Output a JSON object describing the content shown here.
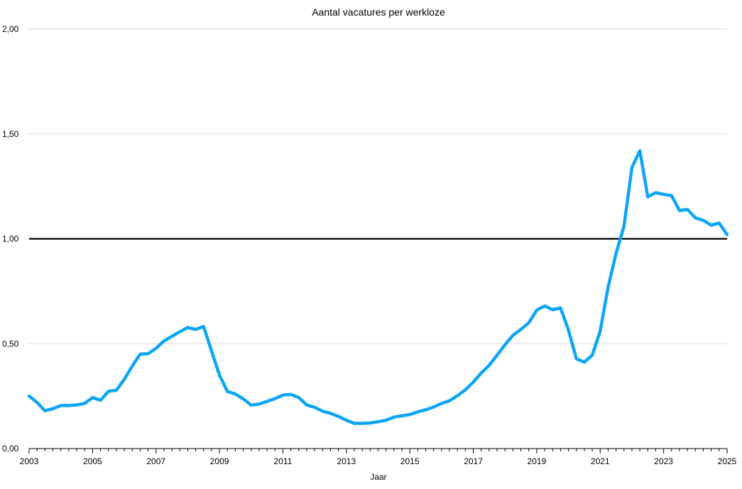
{
  "chart_data": {
    "type": "line",
    "title": "Aantal vacatures per werkloze",
    "xlabel": "Jaar",
    "ylabel": "",
    "xlim": [
      2003,
      2025
    ],
    "ylim": [
      0,
      2
    ],
    "y_ticks": [
      0,
      0.5,
      1,
      1.5,
      2
    ],
    "y_tick_labels": [
      "0,00",
      "0,50",
      "1,00",
      "1,50",
      "2,00"
    ],
    "x_ticks": [
      2003,
      2005,
      2007,
      2009,
      2011,
      2013,
      2015,
      2017,
      2019,
      2021,
      2023,
      2025
    ],
    "x_tick_labels": [
      "2003",
      "2005",
      "2007",
      "2009",
      "2011",
      "2013",
      "2015",
      "2017",
      "2019",
      "2021",
      "2023",
      "2025"
    ],
    "x_minor_ticks_per_year": 4,
    "grid": true,
    "reference_line": {
      "y": 1.0,
      "color": "#000000"
    },
    "series": [
      {
        "color": "#0ea5f5",
        "x": [
          2003.0,
          2003.25,
          2003.5,
          2003.75,
          2004.0,
          2004.25,
          2004.5,
          2004.75,
          2005.0,
          2005.25,
          2005.5,
          2005.75,
          2006.0,
          2006.25,
          2006.5,
          2006.75,
          2007.0,
          2007.25,
          2007.5,
          2007.75,
          2008.0,
          2008.25,
          2008.5,
          2008.75,
          2009.0,
          2009.25,
          2009.5,
          2009.75,
          2010.0,
          2010.25,
          2010.5,
          2010.75,
          2011.0,
          2011.25,
          2011.5,
          2011.75,
          2012.0,
          2012.25,
          2012.5,
          2012.75,
          2013.0,
          2013.25,
          2013.5,
          2013.75,
          2014.0,
          2014.25,
          2014.5,
          2014.75,
          2015.0,
          2015.25,
          2015.5,
          2015.75,
          2016.0,
          2016.25,
          2016.5,
          2016.75,
          2017.0,
          2017.25,
          2017.5,
          2017.75,
          2018.0,
          2018.25,
          2018.5,
          2018.75,
          2019.0,
          2019.25,
          2019.5,
          2019.75,
          2020.0,
          2020.25,
          2020.5,
          2020.75,
          2021.0,
          2021.25,
          2021.5,
          2021.75,
          2022.0,
          2022.25,
          2022.5,
          2022.75,
          2023.0,
          2023.25,
          2023.5,
          2023.75,
          2024.0,
          2024.25,
          2024.5,
          2024.75,
          2025.0
        ],
        "y": [
          0.25,
          0.22,
          0.18,
          0.19,
          0.205,
          0.205,
          0.208,
          0.215,
          0.243,
          0.23,
          0.273,
          0.278,
          0.33,
          0.393,
          0.45,
          0.452,
          0.478,
          0.513,
          0.535,
          0.557,
          0.577,
          0.568,
          0.582,
          0.465,
          0.35,
          0.272,
          0.26,
          0.237,
          0.207,
          0.212,
          0.225,
          0.238,
          0.255,
          0.258,
          0.243,
          0.208,
          0.197,
          0.178,
          0.168,
          0.153,
          0.135,
          0.12,
          0.12,
          0.122,
          0.128,
          0.135,
          0.15,
          0.156,
          0.162,
          0.175,
          0.185,
          0.198,
          0.215,
          0.228,
          0.252,
          0.28,
          0.317,
          0.36,
          0.397,
          0.445,
          0.495,
          0.54,
          0.568,
          0.6,
          0.66,
          0.68,
          0.662,
          0.67,
          0.565,
          0.428,
          0.412,
          0.445,
          0.56,
          0.77,
          0.93,
          1.06,
          1.34,
          1.42,
          1.2,
          1.22,
          1.212,
          1.206,
          1.135,
          1.14,
          1.1,
          1.088,
          1.065,
          1.075,
          1.02
        ]
      }
    ]
  }
}
